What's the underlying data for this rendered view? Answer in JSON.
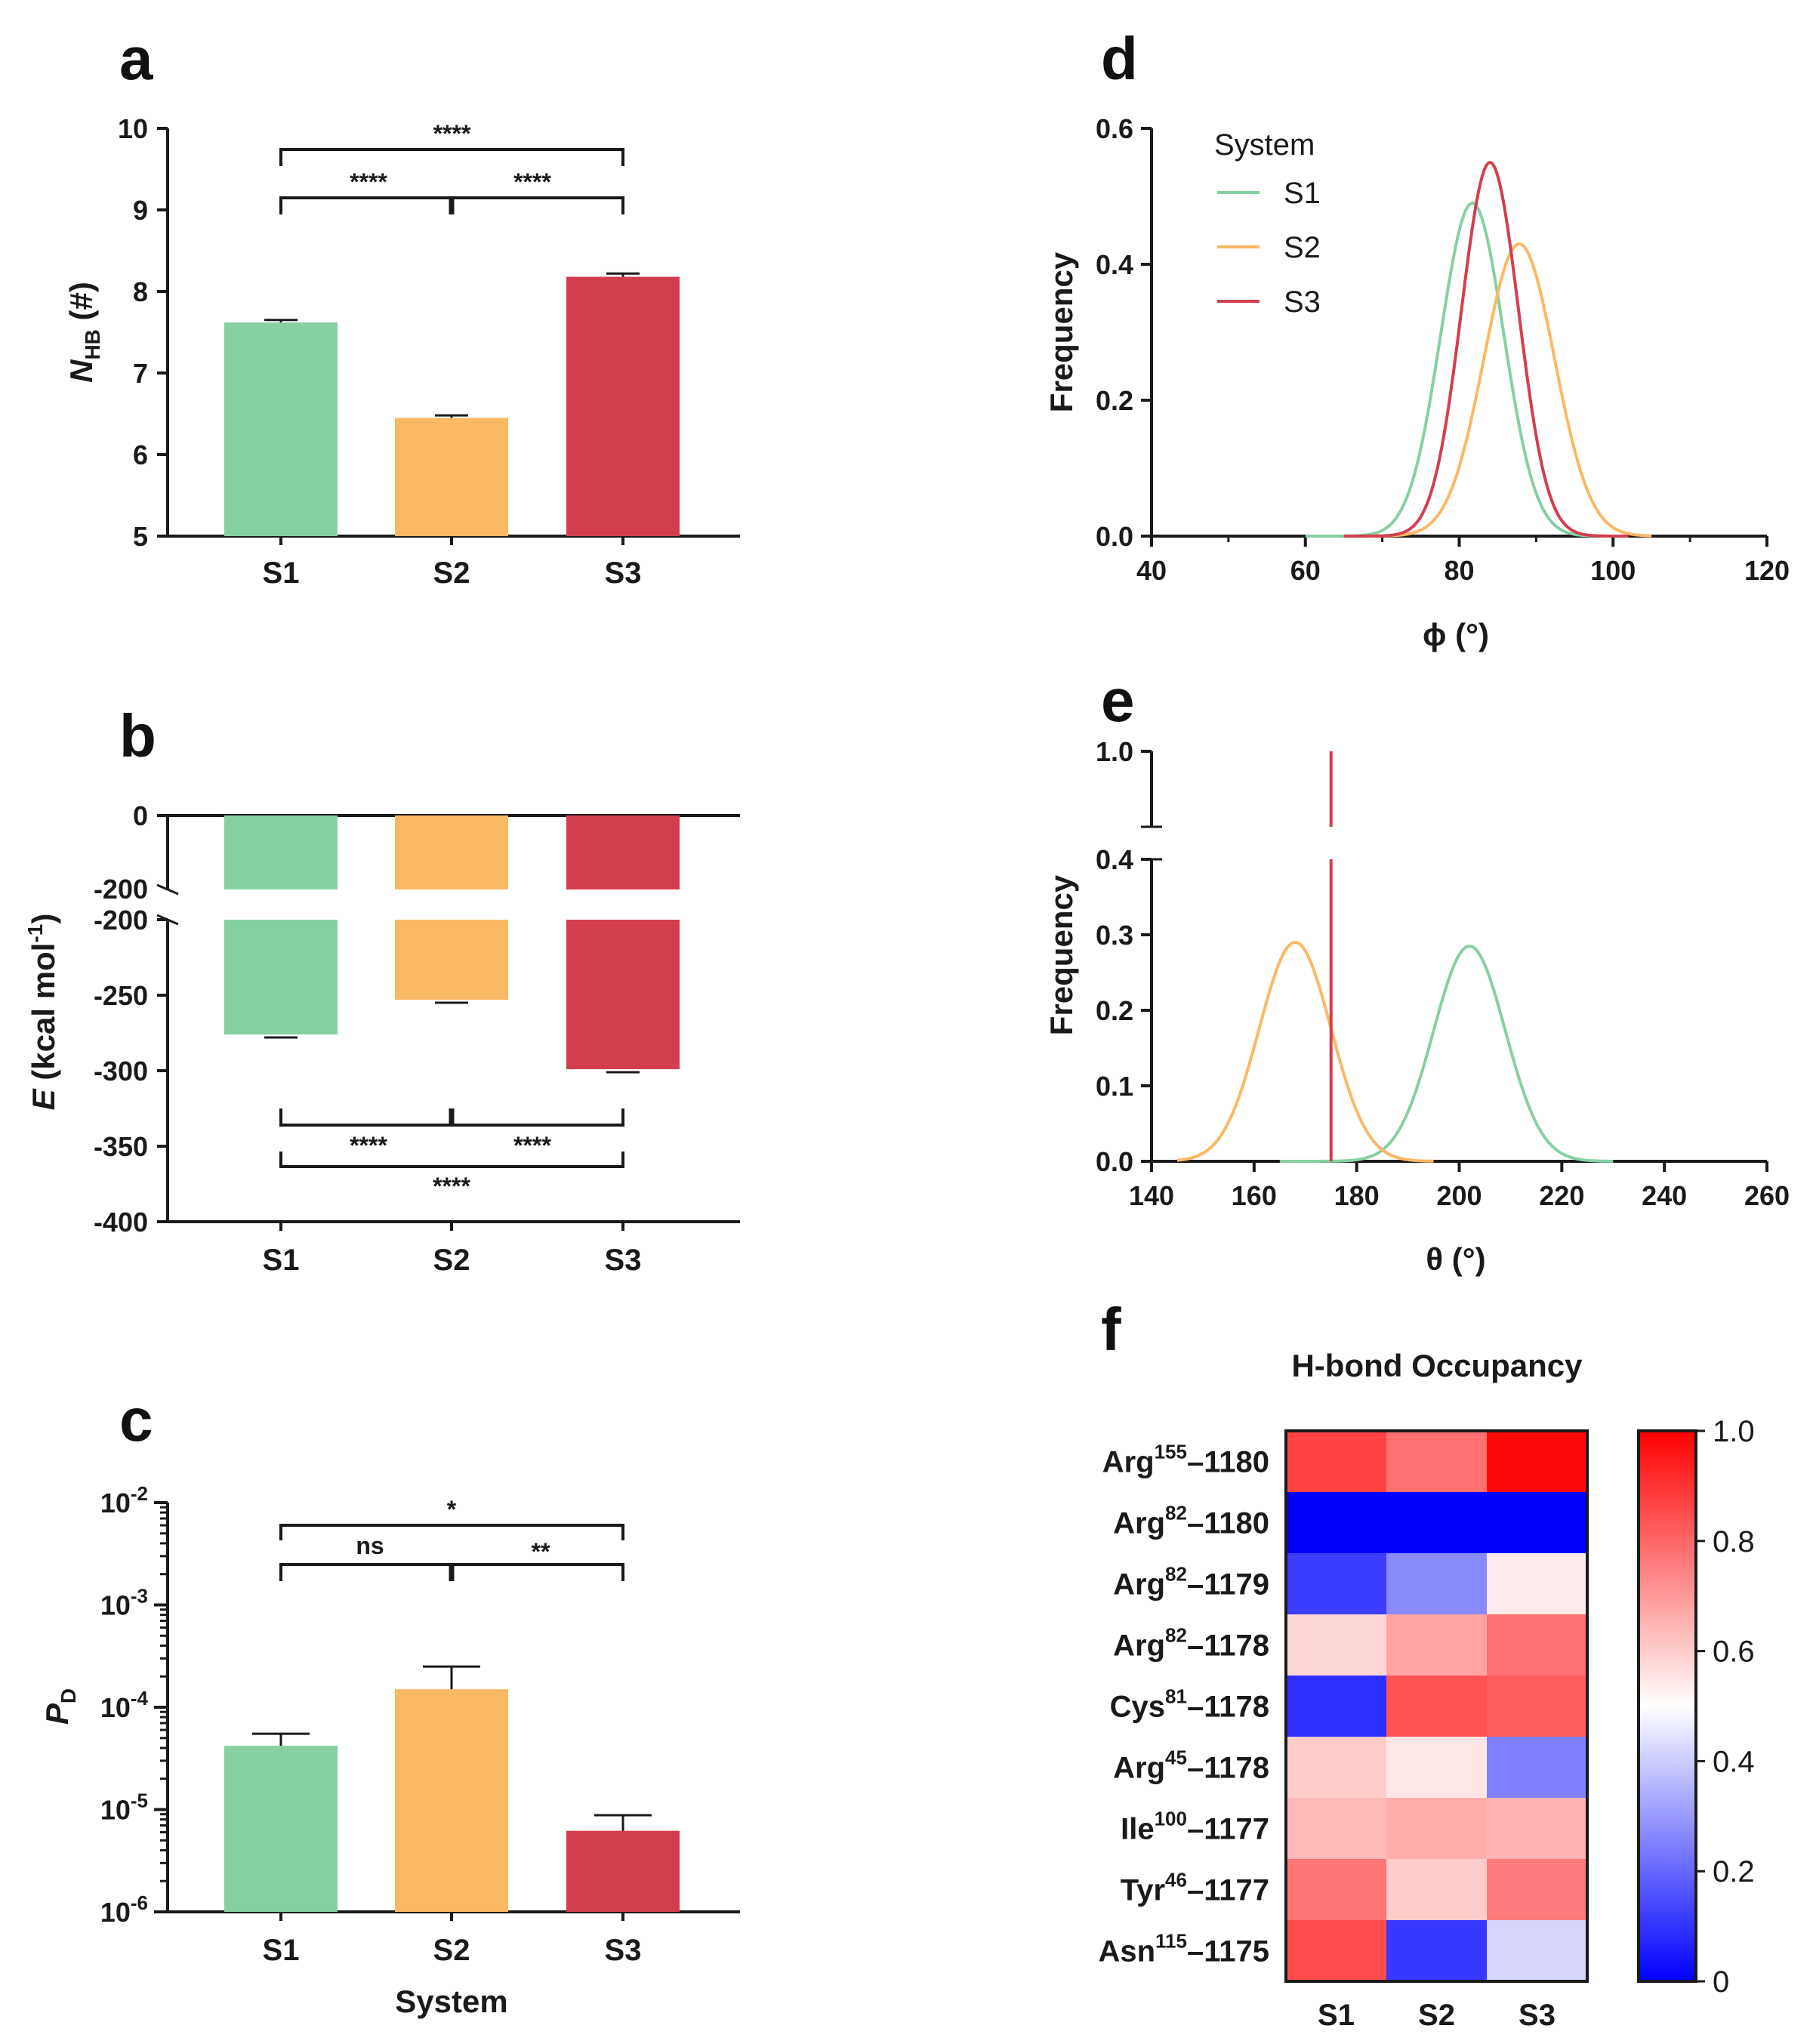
{
  "colors": {
    "S1": "#86d0a4",
    "S2": "#fbb865",
    "S3": "#d33e4f",
    "axis": "#1a1a1a"
  },
  "chart_data": [
    {
      "panel": "a",
      "type": "bar",
      "categories": [
        "S1",
        "S2",
        "S3"
      ],
      "values": [
        7.62,
        6.45,
        8.18
      ],
      "errors": [
        0.03,
        0.03,
        0.04
      ],
      "ylabel_main": "N",
      "ylabel_sub": "HB",
      "ylabel_rest": " (#)",
      "ylim": [
        5,
        10
      ],
      "yticks": [
        "5",
        "6",
        "7",
        "8",
        "9",
        "10"
      ],
      "significance": [
        {
          "from": "S1",
          "to": "S3",
          "label": "****",
          "level": 1
        },
        {
          "from": "S1",
          "to": "S2",
          "label": "****",
          "level": 0
        },
        {
          "from": "S2",
          "to": "S3",
          "label": "****",
          "level": 0
        }
      ]
    },
    {
      "panel": "b",
      "type": "bar",
      "categories": [
        "S1",
        "S2",
        "S3"
      ],
      "values": [
        -276,
        -253,
        -299
      ],
      "errors": [
        1,
        1,
        1
      ],
      "ylabel_main": "E",
      "ylabel_rest": " (kcal mol",
      "ylabel_sup": "-1",
      "ylabel_end": ")",
      "axis_break": [
        -200,
        -200
      ],
      "upper_range": [
        -200,
        0
      ],
      "upper_ticks": [
        "0",
        "-200"
      ],
      "lower_range": [
        -400,
        -200
      ],
      "lower_ticks": [
        "-200",
        "-250",
        "-300",
        "-350",
        "-400"
      ],
      "significance": [
        {
          "from": "S1",
          "to": "S2",
          "label": "****",
          "level": 0
        },
        {
          "from": "S2",
          "to": "S3",
          "label": "****",
          "level": 0
        },
        {
          "from": "S1",
          "to": "S3",
          "label": "****",
          "level": 1
        }
      ]
    },
    {
      "panel": "c",
      "type": "bar",
      "scale": "log",
      "categories": [
        "S1",
        "S2",
        "S3"
      ],
      "values": [
        4.2e-05,
        0.00015,
        6.2e-06
      ],
      "error_tops": [
        5.5e-05,
        0.00025,
        8.8e-06
      ],
      "ylabel_main": "P",
      "ylabel_sub": "D",
      "ylim": [
        1e-06,
        0.01
      ],
      "ytick_bases": [
        "10",
        "10",
        "10",
        "10",
        "10"
      ],
      "ytick_exps": [
        "-6",
        "-5",
        "-4",
        "-3",
        "-2"
      ],
      "xlabel": "System",
      "significance": [
        {
          "from": "S1",
          "to": "S3",
          "label": "*",
          "level": 1
        },
        {
          "from": "S1",
          "to": "S2",
          "label": "ns",
          "level": 0
        },
        {
          "from": "S2",
          "to": "S3",
          "label": "**",
          "level": 0
        }
      ]
    },
    {
      "panel": "d",
      "type": "line",
      "xlabel": "ϕ (°)",
      "ylabel": "Frequency",
      "xlim": [
        40,
        120
      ],
      "ylim": [
        0,
        0.6
      ],
      "xticks": [
        "40",
        "60",
        "80",
        "100",
        "120"
      ],
      "yticks": [
        "0.0",
        "0.2",
        "0.4",
        "0.6"
      ],
      "legend_title": "System",
      "series": [
        {
          "name": "S1",
          "mean": 81.7,
          "sd": 4.1,
          "peak": 0.49,
          "range": [
            60,
            100
          ]
        },
        {
          "name": "S2",
          "mean": 87.8,
          "sd": 4.6,
          "peak": 0.43,
          "range": [
            65,
            105
          ]
        },
        {
          "name": "S3",
          "mean": 84.0,
          "sd": 3.7,
          "peak": 0.55,
          "range": [
            65,
            102
          ]
        }
      ]
    },
    {
      "panel": "e",
      "type": "line",
      "xlabel": "θ (°)",
      "ylabel": "Frequency",
      "xlim": [
        140,
        260
      ],
      "axis_break": [
        0.4,
        1.0
      ],
      "lower_ticks": [
        "0.0",
        "0.1",
        "0.2",
        "0.3",
        "0.4"
      ],
      "upper_ticks": [
        "1.0"
      ],
      "xticks": [
        "140",
        "160",
        "180",
        "200",
        "220",
        "240",
        "260"
      ],
      "series": [
        {
          "name": "S1",
          "mean": 202,
          "sd": 7,
          "peak": 0.285,
          "range": [
            165,
            230
          ]
        },
        {
          "name": "S2",
          "mean": 168,
          "sd": 7,
          "peak": 0.29,
          "range": [
            145,
            195
          ]
        },
        {
          "name": "S3",
          "spike_at": 175,
          "peak": 1.0
        }
      ]
    },
    {
      "panel": "f",
      "type": "heatmap",
      "title": "H-bond Occupancy",
      "columns": [
        "S1",
        "S2",
        "S3"
      ],
      "rows": [
        {
          "res": "Arg",
          "sup": "155",
          "atom": "–1180",
          "values": [
            0.87,
            0.78,
            0.98
          ]
        },
        {
          "res": "Arg",
          "sup": "82",
          "atom": "–1180",
          "values": [
            0.0,
            0.0,
            0.0
          ]
        },
        {
          "res": "Arg",
          "sup": "82",
          "atom": "–1179",
          "values": [
            0.12,
            0.27,
            0.54
          ]
        },
        {
          "res": "Arg",
          "sup": "82",
          "atom": "–1178",
          "values": [
            0.58,
            0.68,
            0.78
          ]
        },
        {
          "res": "Cys",
          "sup": "81",
          "atom": "–1178",
          "values": [
            0.09,
            0.84,
            0.82
          ]
        },
        {
          "res": "Arg",
          "sup": "45",
          "atom": "–1178",
          "values": [
            0.6,
            0.55,
            0.25
          ]
        },
        {
          "res": "Ile",
          "sup": "100",
          "atom": "–1177",
          "values": [
            0.64,
            0.66,
            0.65
          ]
        },
        {
          "res": "Tyr",
          "sup": "46",
          "atom": "–1177",
          "values": [
            0.77,
            0.6,
            0.76
          ]
        },
        {
          "res": "Asn",
          "sup": "115",
          "atom": "–1175",
          "values": [
            0.85,
            0.11,
            0.42
          ]
        }
      ],
      "colorbar_range": [
        0,
        1
      ],
      "colorbar_ticks": [
        "0",
        "0.2",
        "0.4",
        "0.6",
        "0.8",
        "1.0"
      ]
    }
  ]
}
